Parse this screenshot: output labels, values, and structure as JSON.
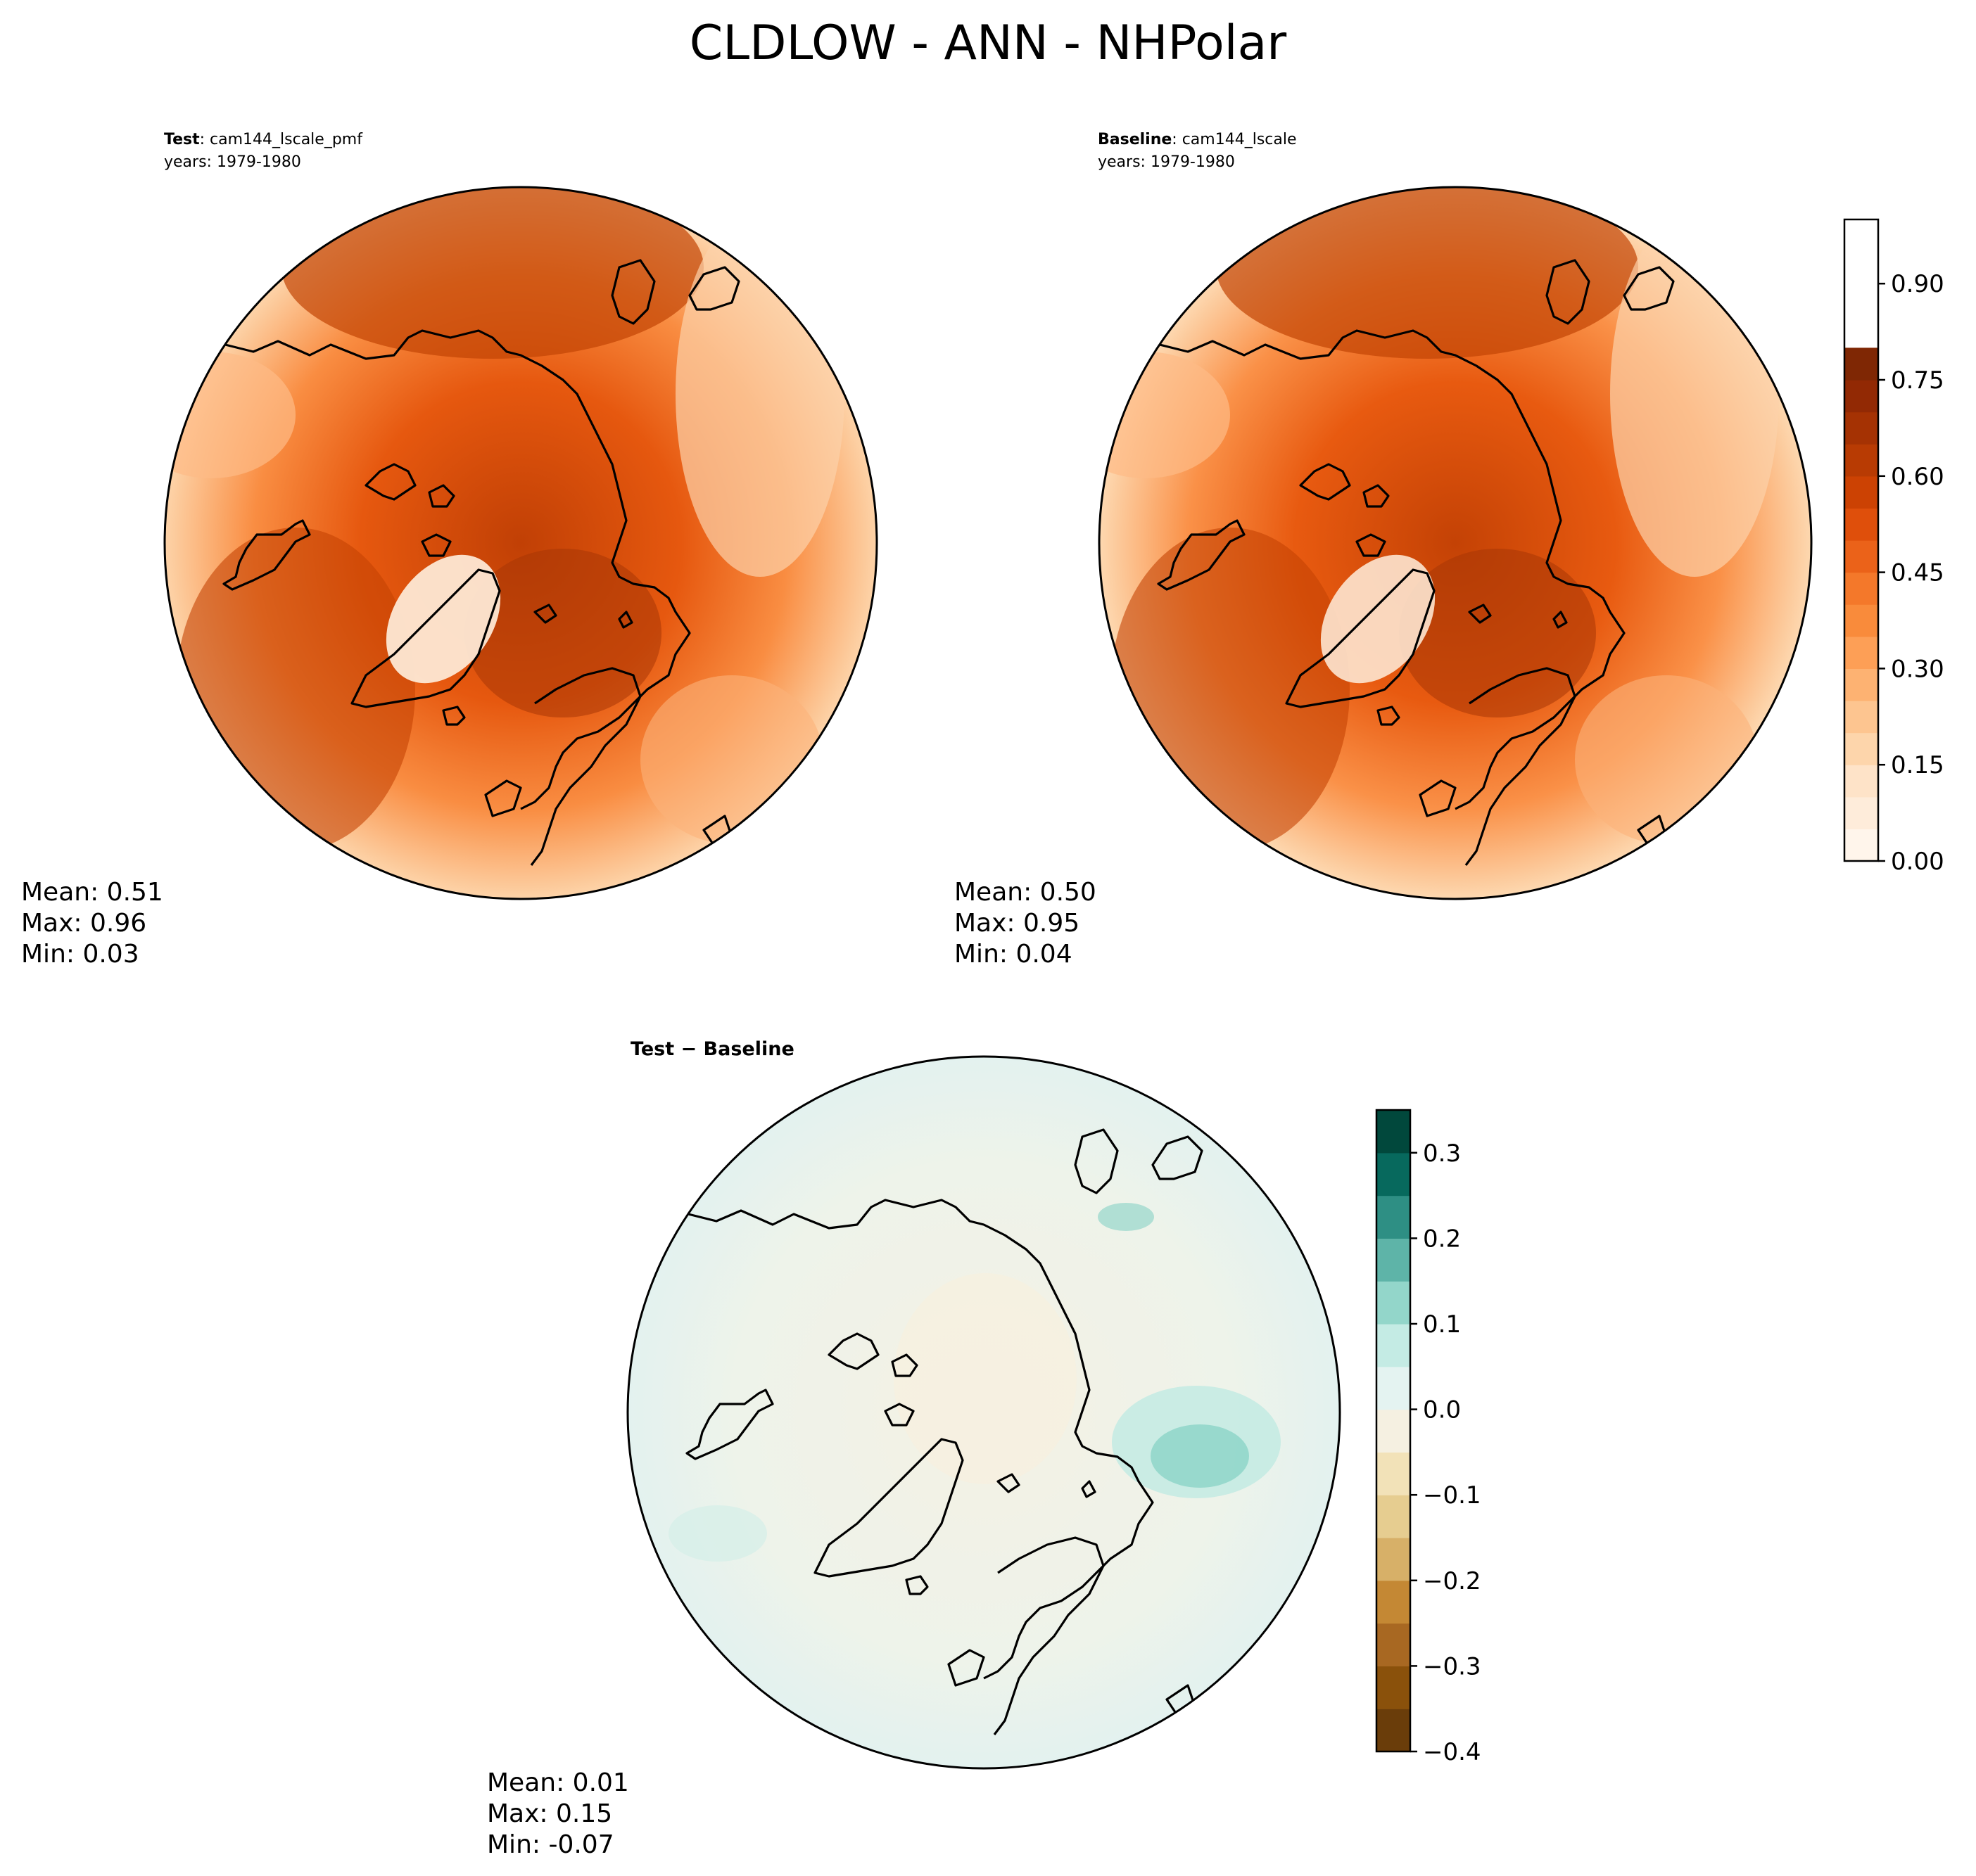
{
  "figure": {
    "title": "CLDLOW - ANN - NHPolar"
  },
  "chart_data": [
    {
      "type": "heatmap",
      "projection": "north-polar-stereographic",
      "panel": "test",
      "title_bold": "Test",
      "title_rest": ": cam144_lscale_pmf",
      "years": "years: 1979-1980",
      "stats": {
        "mean": "Mean:  0.51",
        "max": "Max:  0.96",
        "min": "Min:  0.03"
      },
      "values": {
        "mean": 0.51,
        "max": 0.96,
        "min": 0.03
      }
    },
    {
      "type": "heatmap",
      "projection": "north-polar-stereographic",
      "panel": "baseline",
      "title_bold": "Baseline",
      "title_rest": ": cam144_lscale",
      "years": "years: 1979-1980",
      "stats": {
        "mean": "Mean:  0.50",
        "max": "Max:  0.95",
        "min": "Min:  0.04"
      },
      "values": {
        "mean": 0.5,
        "max": 0.95,
        "min": 0.04
      },
      "colorbar": {
        "cmap": "Oranges",
        "range": [
          0.0,
          1.0
        ],
        "levels": [
          0.0,
          0.05,
          0.1,
          0.15,
          0.2,
          0.25,
          0.3,
          0.35,
          0.4,
          0.45,
          0.5,
          0.55,
          0.6,
          0.65,
          0.7,
          0.75,
          0.8,
          0.85,
          0.9,
          0.95,
          1.0
        ],
        "ticks": [
          0.0,
          0.15,
          0.3,
          0.45,
          0.6,
          0.75,
          0.9
        ],
        "tick_labels": [
          "0.00",
          "0.15",
          "0.30",
          "0.45",
          "0.60",
          "0.75",
          "0.90"
        ],
        "colors": [
          "#fff5eb",
          "#feecda",
          "#fee3c8",
          "#fdd5ab",
          "#fdc590",
          "#fdb272",
          "#fd9f56",
          "#f98b3b",
          "#f4782a",
          "#eb6219",
          "#df4f0b",
          "#cc4203",
          "#b83b03",
          "#a53203",
          "#922904",
          "#7f2704"
        ]
      }
    },
    {
      "type": "heatmap",
      "projection": "north-polar-stereographic",
      "panel": "difference",
      "title_bold": "Test − Baseline",
      "stats": {
        "mean": "Mean:  0.01",
        "max": "Max:  0.15",
        "min": "Min: -0.07"
      },
      "values": {
        "mean": 0.01,
        "max": 0.15,
        "min": -0.07
      },
      "colorbar": {
        "cmap": "BrBG",
        "range": [
          -0.4,
          0.35
        ],
        "levels": [
          -0.4,
          -0.35,
          -0.3,
          -0.25,
          -0.2,
          -0.15,
          -0.1,
          -0.05,
          0.0,
          0.05,
          0.1,
          0.15,
          0.2,
          0.25,
          0.3,
          0.35
        ],
        "ticks": [
          -0.4,
          -0.3,
          -0.2,
          -0.1,
          0.0,
          0.1,
          0.2,
          0.3
        ],
        "tick_labels": [
          "−0.4",
          "−0.3",
          "−0.2",
          "−0.1",
          "0.0",
          "0.1",
          "0.2",
          "0.3"
        ],
        "colors": [
          "#6a3d0a",
          "#8a510b",
          "#a86822",
          "#c48834",
          "#d7b068",
          "#e6cd90",
          "#f2e2b8",
          "#f5f0e1",
          "#e4f3f1",
          "#c4ebe4",
          "#93d6ca",
          "#5eb4a8",
          "#2e8f84",
          "#07695d",
          "#01483c"
        ]
      }
    }
  ]
}
